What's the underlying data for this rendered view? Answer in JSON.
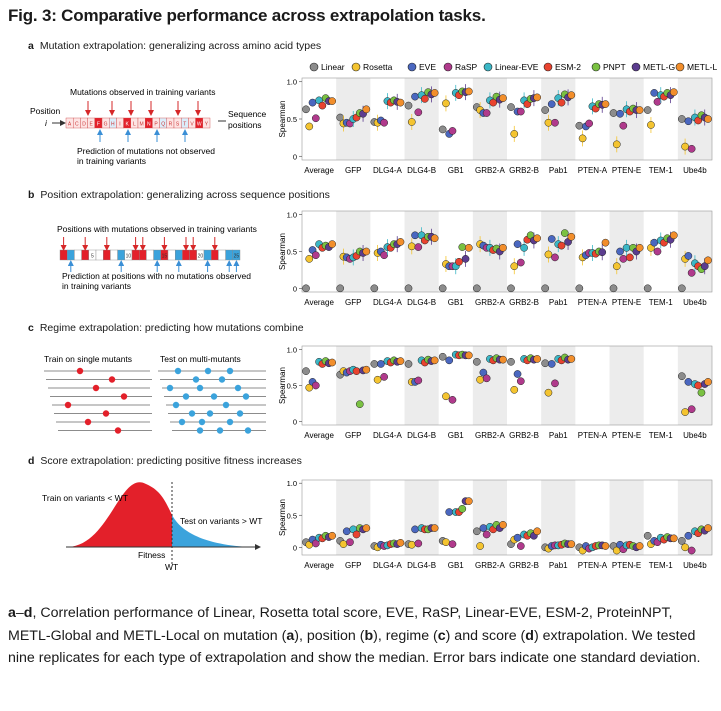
{
  "figure": {
    "title": "Fig. 3: Comparative performance across extrapolation tasks.",
    "panels": [
      {
        "letter": "a",
        "title": "Mutation extrapolation: generalizing across amino acid types"
      },
      {
        "letter": "b",
        "title": "Position extrapolation: generalizing across sequence positions"
      },
      {
        "letter": "c",
        "title": "Regime extrapolation: predicting how mutations combine"
      },
      {
        "letter": "d",
        "title": "Score extrapolation: predicting positive fitness increases"
      }
    ],
    "schematics": {
      "a": {
        "observed_label": "Mutations observed in training variants",
        "position_label": "Position",
        "position_var": "i",
        "sequence_positions_label": "Sequence\npositions",
        "not_observed_label": "Prediction of mutations not observed\nin training variants",
        "residues": [
          "A",
          "C",
          "D",
          "E",
          "F",
          "G",
          "H",
          "I",
          "K",
          "L",
          "M",
          "N",
          "P",
          "Q",
          "R",
          "S",
          "T",
          "V",
          "W",
          "Y"
        ]
      },
      "b": {
        "observed_label": "Positions with mutations observed in training variants",
        "not_observed_label": "Prediction at positions with no mutations observed\nin training variants",
        "ticks": [
          "5",
          "10",
          "15",
          "20",
          "25"
        ]
      },
      "c": {
        "train_label": "Train on single mutants",
        "test_label": "Test on multi-mutants"
      },
      "d": {
        "train_label": "Train on variants < WT",
        "test_label": "Test on variants > WT",
        "fitness_label": "Fitness",
        "wt_label": "WT"
      }
    },
    "caption": "a–d, Correlation performance of Linear, Rosetta total score, EVE, RaSP, Linear-EVE, ESM-2, ProteinNPT, METL-Global and METL-Local on mutation (a), position (b), regime (c) and score (d) extrapolation. We tested nine replicates for each type of extrapolation and show the median. Error bars indicate one standard deviation."
  },
  "chart_data": [
    {
      "type": "scatter",
      "panel": "a",
      "ylabel": "Spearman",
      "ylim": [
        -0.05,
        1.05
      ],
      "yticks": [
        "0",
        "0.5",
        "1.0"
      ],
      "categories": [
        "Average",
        "GFP",
        "DLG4-A",
        "DLG4-B",
        "GB1",
        "GRB2-A",
        "GRB2-B",
        "Pab1",
        "PTEN-A",
        "PTEN-E",
        "TEM-1",
        "Ube4b"
      ],
      "series": [
        {
          "name": "Linear",
          "color": "#8c8c8c",
          "values": [
            0.63,
            0.52,
            0.46,
            0.68,
            0.36,
            0.66,
            0.66,
            0.62,
            0.41,
            0.58,
            0.62,
            0.5
          ]
        },
        {
          "name": "Rosetta",
          "color": "#f4c430",
          "values": [
            0.4,
            0.44,
            0.45,
            0.46,
            0.71,
            0.62,
            0.3,
            0.45,
            0.24,
            0.16,
            0.42,
            0.13
          ]
        },
        {
          "name": "EVE",
          "color": "#4a67c0",
          "values": [
            0.72,
            0.45,
            0.48,
            0.8,
            0.3,
            0.58,
            0.6,
            0.7,
            0.4,
            0.57,
            0.85,
            0.47
          ]
        },
        {
          "name": "RaSP",
          "color": "#b03a8c",
          "values": [
            0.51,
            0.44,
            0.45,
            0.59,
            0.34,
            0.58,
            0.6,
            0.45,
            0.44,
            0.41,
            0.73,
            0.1
          ]
        },
        {
          "name": "Linear-EVE",
          "color": "#3bb7c6",
          "values": [
            0.75,
            0.5,
            0.74,
            0.82,
            0.85,
            0.75,
            0.75,
            0.78,
            0.67,
            0.63,
            0.82,
            0.52
          ]
        },
        {
          "name": "ESM-2",
          "color": "#e9432f",
          "values": [
            0.68,
            0.52,
            0.72,
            0.77,
            0.82,
            0.72,
            0.7,
            0.72,
            0.64,
            0.6,
            0.8,
            0.48
          ]
        },
        {
          "name": "PNPT",
          "color": "#7ac142",
          "values": [
            0.78,
            0.58,
            0.75,
            0.86,
            0.87,
            0.8,
            0.77,
            0.83,
            0.7,
            0.64,
            0.85,
            0.55
          ]
        },
        {
          "name": "METL-G",
          "color": "#5b3c8f",
          "values": [
            0.74,
            0.57,
            0.73,
            0.83,
            0.86,
            0.76,
            0.78,
            0.79,
            0.69,
            0.62,
            0.82,
            0.52
          ]
        },
        {
          "name": "METL-L",
          "color": "#f28e2b",
          "values": [
            0.74,
            0.63,
            0.72,
            0.85,
            0.87,
            0.78,
            0.79,
            0.82,
            0.7,
            0.62,
            0.86,
            0.5
          ]
        }
      ]
    },
    {
      "type": "scatter",
      "panel": "b",
      "ylabel": "Spearman",
      "ylim": [
        -0.05,
        1.05
      ],
      "yticks": [
        "0",
        "0.5",
        "1.0"
      ],
      "categories": [
        "Average",
        "GFP",
        "DLG4-A",
        "DLG4-B",
        "GB1",
        "GRB2-A",
        "GRB2-B",
        "Pab1",
        "PTEN-A",
        "PTEN-E",
        "TEM-1",
        "Ube4b"
      ],
      "series": [
        {
          "name": "Linear",
          "color": "#8c8c8c",
          "values": [
            0.0,
            0.0,
            0.0,
            0.0,
            0.0,
            0.0,
            0.0,
            0.0,
            0.0,
            0.0,
            0.0,
            0.0
          ]
        },
        {
          "name": "Rosetta",
          "color": "#f4c430",
          "values": [
            0.4,
            0.43,
            0.48,
            0.57,
            0.33,
            0.6,
            0.3,
            0.46,
            0.42,
            0.3,
            0.55,
            0.4
          ]
        },
        {
          "name": "EVE",
          "color": "#4a67c0",
          "values": [
            0.52,
            0.42,
            0.5,
            0.72,
            0.3,
            0.58,
            0.6,
            0.67,
            0.45,
            0.5,
            0.62,
            0.44
          ]
        },
        {
          "name": "RaSP",
          "color": "#b03a8c",
          "values": [
            0.45,
            0.4,
            0.45,
            0.56,
            0.3,
            0.55,
            0.35,
            0.42,
            0.48,
            0.4,
            0.5,
            0.21
          ]
        },
        {
          "name": "Linear-EVE",
          "color": "#3bb7c6",
          "values": [
            0.6,
            0.42,
            0.56,
            0.72,
            0.3,
            0.55,
            0.55,
            0.6,
            0.48,
            0.55,
            0.65,
            0.34
          ]
        },
        {
          "name": "ESM-2",
          "color": "#e9432f",
          "values": [
            0.55,
            0.44,
            0.55,
            0.65,
            0.36,
            0.52,
            0.66,
            0.58,
            0.47,
            0.42,
            0.62,
            0.3
          ]
        },
        {
          "name": "PNPT",
          "color": "#7ac142",
          "values": [
            0.58,
            0.5,
            0.6,
            0.7,
            0.56,
            0.54,
            0.72,
            0.75,
            0.5,
            0.55,
            0.68,
            0.26
          ]
        },
        {
          "name": "METL-G",
          "color": "#5b3c8f",
          "values": [
            0.56,
            0.48,
            0.6,
            0.7,
            0.4,
            0.5,
            0.65,
            0.63,
            0.49,
            0.5,
            0.66,
            0.3
          ]
        },
        {
          "name": "METL-L",
          "color": "#f28e2b",
          "values": [
            0.6,
            0.5,
            0.63,
            0.68,
            0.55,
            0.55,
            0.68,
            0.7,
            0.62,
            0.55,
            0.72,
            0.38
          ]
        }
      ]
    },
    {
      "type": "scatter",
      "panel": "c",
      "ylabel": "Spearman",
      "ylim": [
        -0.05,
        1.05
      ],
      "yticks": [
        "0",
        "0.5",
        "1.0"
      ],
      "categories": [
        "Average",
        "GFP",
        "DLG4-A",
        "DLG4-B",
        "GB1",
        "GRB2-A",
        "GRB2-B",
        "Pab1",
        "PTEN-A",
        "PTEN-E",
        "TEM-1",
        "Ube4b"
      ],
      "series": [
        {
          "name": "Linear",
          "color": "#8c8c8c",
          "values": [
            0.7,
            0.65,
            0.8,
            0.8,
            0.9,
            0.83,
            0.83,
            0.81,
            null,
            null,
            null,
            0.63
          ]
        },
        {
          "name": "Rosetta",
          "color": "#f4c430",
          "values": [
            0.47,
            0.7,
            0.58,
            0.55,
            0.35,
            0.58,
            0.44,
            0.4,
            null,
            null,
            null,
            0.13
          ]
        },
        {
          "name": "EVE",
          "color": "#4a67c0",
          "values": [
            0.55,
            0.68,
            0.8,
            0.55,
            0.85,
            0.68,
            0.66,
            0.8,
            null,
            null,
            null,
            0.55
          ]
        },
        {
          "name": "RaSP",
          "color": "#b03a8c",
          "values": [
            0.5,
            0.7,
            0.62,
            0.57,
            0.3,
            0.6,
            0.56,
            0.53,
            null,
            null,
            null,
            0.17
          ]
        },
        {
          "name": "Linear-EVE",
          "color": "#3bb7c6",
          "values": [
            0.83,
            0.72,
            0.84,
            0.85,
            0.93,
            0.87,
            0.87,
            0.87,
            null,
            null,
            null,
            0.52
          ]
        },
        {
          "name": "ESM-2",
          "color": "#e9432f",
          "values": [
            0.8,
            0.7,
            0.82,
            0.82,
            0.92,
            0.85,
            0.85,
            0.85,
            null,
            null,
            null,
            0.5
          ]
        },
        {
          "name": "PNPT",
          "color": "#7ac142",
          "values": [
            0.84,
            0.24,
            0.85,
            0.86,
            0.93,
            0.88,
            0.88,
            0.89,
            null,
            null,
            null,
            0.4
          ]
        },
        {
          "name": "METL-G",
          "color": "#5b3c8f",
          "values": [
            0.81,
            0.71,
            0.83,
            0.84,
            0.92,
            0.86,
            0.86,
            0.86,
            null,
            null,
            null,
            0.52
          ]
        },
        {
          "name": "METL-L",
          "color": "#f28e2b",
          "values": [
            0.82,
            0.72,
            0.84,
            0.85,
            0.92,
            0.86,
            0.87,
            0.87,
            null,
            null,
            null,
            0.55
          ]
        }
      ]
    },
    {
      "type": "scatter",
      "panel": "d",
      "ylabel": "Spearman",
      "ylim": [
        -0.12,
        1.05
      ],
      "yticks": [
        "0",
        "0.5",
        "1.0"
      ],
      "categories": [
        "Average",
        "GFP",
        "DLG4-A",
        "DLG4-B",
        "GB1",
        "GRB2-A",
        "GRB2-B",
        "Pab1",
        "PTEN-A",
        "PTEN-E",
        "TEM-1",
        "Ube4b"
      ],
      "series": [
        {
          "name": "Linear",
          "color": "#8c8c8c",
          "values": [
            0.08,
            0.1,
            0.02,
            0.05,
            0.1,
            0.25,
            0.05,
            0.0,
            0.0,
            0.02,
            0.18,
            0.1
          ]
        },
        {
          "name": "Rosetta",
          "color": "#f4c430",
          "values": [
            0.04,
            0.05,
            0.0,
            0.04,
            0.08,
            0.02,
            0.12,
            -0.02,
            -0.05,
            -0.05,
            0.05,
            0.0
          ]
        },
        {
          "name": "EVE",
          "color": "#4a67c0",
          "values": [
            0.12,
            0.25,
            0.04,
            0.28,
            0.55,
            0.3,
            0.15,
            0.02,
            0.02,
            0.04,
            0.1,
            0.18
          ]
        },
        {
          "name": "RaSP",
          "color": "#b03a8c",
          "values": [
            0.06,
            0.08,
            0.02,
            0.06,
            0.05,
            0.2,
            0.02,
            0.03,
            -0.02,
            -0.03,
            0.08,
            -0.05
          ]
        },
        {
          "name": "Linear-EVE",
          "color": "#3bb7c6",
          "values": [
            0.15,
            0.28,
            0.03,
            0.3,
            0.55,
            0.32,
            0.2,
            0.03,
            0.0,
            0.03,
            0.15,
            0.25
          ]
        },
        {
          "name": "ESM-2",
          "color": "#e9432f",
          "values": [
            0.14,
            0.2,
            0.05,
            0.28,
            0.55,
            0.28,
            0.18,
            0.04,
            0.02,
            0.04,
            0.12,
            0.22
          ]
        },
        {
          "name": "PNPT",
          "color": "#7ac142",
          "values": [
            0.18,
            0.3,
            0.06,
            0.28,
            0.6,
            0.35,
            0.22,
            0.06,
            0.03,
            0.02,
            0.16,
            0.28
          ]
        },
        {
          "name": "METL-G",
          "color": "#5b3c8f",
          "values": [
            0.16,
            0.28,
            0.05,
            0.3,
            0.72,
            0.3,
            0.18,
            0.05,
            0.03,
            0.0,
            0.14,
            0.26
          ]
        },
        {
          "name": "METL-L",
          "color": "#f28e2b",
          "values": [
            0.18,
            0.3,
            0.07,
            0.3,
            0.72,
            0.35,
            0.25,
            0.05,
            0.02,
            0.02,
            0.14,
            0.3
          ]
        }
      ]
    }
  ]
}
